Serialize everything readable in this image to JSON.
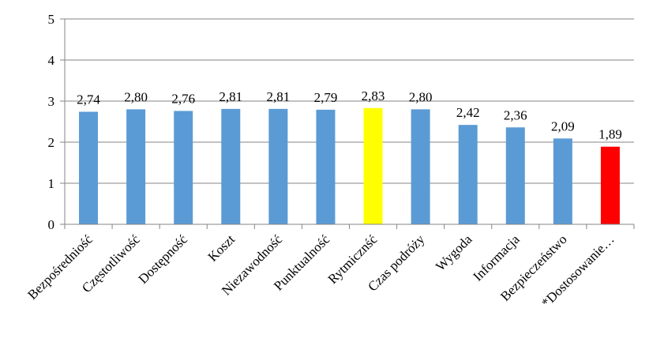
{
  "chart_data": {
    "type": "bar",
    "title": "",
    "xlabel": "",
    "ylabel": "",
    "ylim": [
      0,
      5
    ],
    "yticks": [
      0,
      1,
      2,
      3,
      4,
      5
    ],
    "grid": true,
    "legend": "none",
    "categories": [
      "Bezpośredniość",
      "Częstotliwość",
      "Dostępność",
      "Koszt",
      "Niezawodność",
      "Punktualność",
      "Rytmicznść",
      "Czas podróży",
      "Wygoda",
      "Informacja",
      "Bezpieczeństwo",
      "*Dostosowanie…"
    ],
    "values": [
      2.74,
      2.8,
      2.76,
      2.81,
      2.81,
      2.79,
      2.83,
      2.8,
      2.42,
      2.36,
      2.09,
      1.89
    ],
    "value_labels": [
      "2,74",
      "2,80",
      "2,76",
      "2,81",
      "2,81",
      "2,79",
      "2,83",
      "2,80",
      "2,42",
      "2,36",
      "2,09",
      "1,89"
    ],
    "tick_labels": [
      "0",
      "1",
      "2",
      "3",
      "4",
      "5"
    ],
    "colors": {
      "default": "#5b9bd5",
      "highlight_yellow": "#ffff00",
      "highlight_red": "#ff0000",
      "grid": "#868686",
      "axis": "#868686"
    },
    "bar_colors": [
      "#5b9bd5",
      "#5b9bd5",
      "#5b9bd5",
      "#5b9bd5",
      "#5b9bd5",
      "#5b9bd5",
      "#ffff00",
      "#5b9bd5",
      "#5b9bd5",
      "#5b9bd5",
      "#5b9bd5",
      "#ff0000"
    ]
  }
}
